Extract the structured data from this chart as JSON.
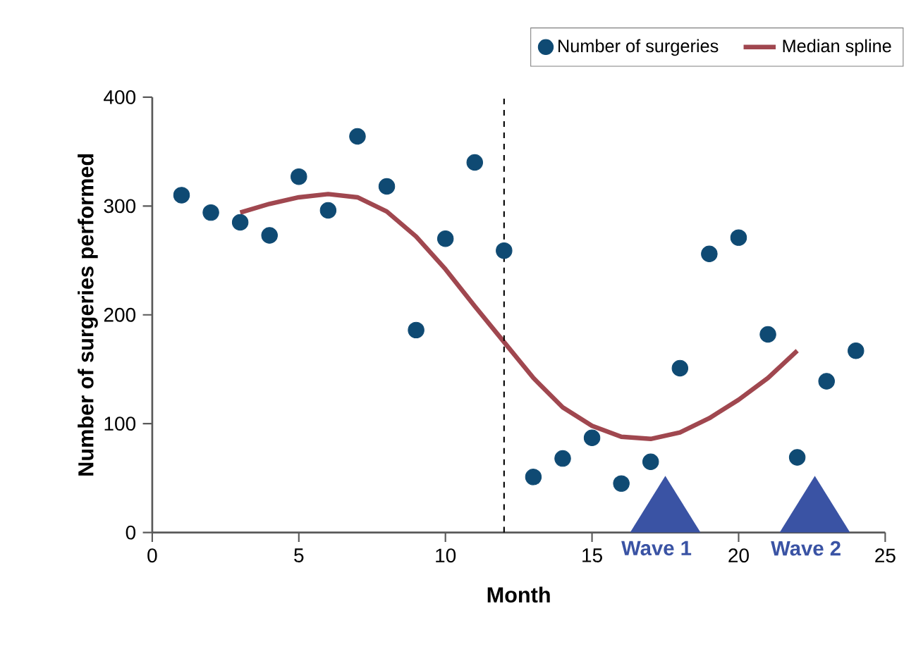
{
  "chart_data": {
    "type": "scatter",
    "xlabel": "Month",
    "ylabel": "Number of surgeries performed",
    "xlim": [
      0,
      25
    ],
    "ylim": [
      0,
      400
    ],
    "xticks": [
      0,
      5,
      10,
      15,
      20,
      25
    ],
    "yticks": [
      0,
      100,
      200,
      300,
      400
    ],
    "grid": false,
    "legend": "top right",
    "marker": "circle",
    "series": [
      {
        "name": "Number of surgeries",
        "color": "#0f4a73",
        "x": [
          1,
          2,
          3,
          4,
          5,
          6,
          7,
          8,
          9,
          10,
          11,
          12,
          13,
          14,
          15,
          16,
          17,
          18,
          19,
          20,
          21,
          22,
          23,
          24
        ],
        "values": [
          310,
          294,
          285,
          273,
          327,
          296,
          364,
          318,
          186,
          270,
          340,
          259,
          51,
          68,
          87,
          45,
          65,
          151,
          256,
          271,
          182,
          69,
          139,
          167
        ]
      },
      {
        "name": "Median spline",
        "type": "line",
        "color": "#a0474f",
        "marker": "none",
        "line_style": "solid",
        "x": [
          3,
          4,
          5,
          6,
          7,
          8,
          9,
          10,
          11,
          12,
          13,
          14,
          15,
          16,
          17,
          18,
          19,
          20,
          21,
          22
        ],
        "values": [
          294,
          302,
          308,
          311,
          308,
          295,
          272,
          242,
          208,
          175,
          142,
          115,
          98,
          88,
          86,
          92,
          105,
          122,
          142,
          167
        ]
      }
    ],
    "ref_lines": [
      {
        "axis": "x",
        "value": 12,
        "color": "#000000",
        "line_style": "dashed"
      }
    ],
    "annotations": [
      "Wave 1",
      "Wave 2"
    ]
  }
}
